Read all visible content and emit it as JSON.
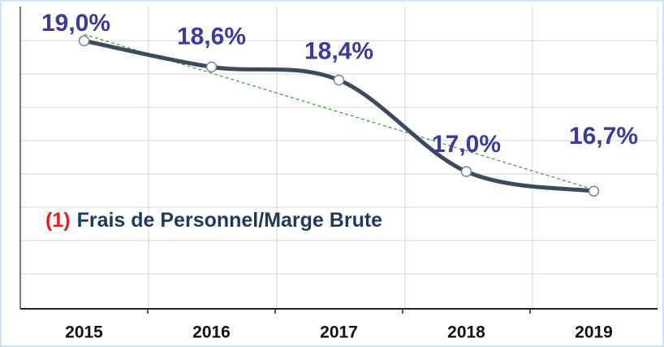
{
  "chart_data": {
    "type": "line",
    "categories": [
      "2015",
      "2016",
      "2017",
      "2018",
      "2019"
    ],
    "values": [
      19.0,
      18.6,
      18.4,
      17.0,
      16.7
    ],
    "value_labels": [
      "19,0%",
      "18,6%",
      "18,4%",
      "17,0%",
      "16,7%"
    ],
    "color": "#3d4a5e",
    "ylim": [
      14.9,
      19.5
    ],
    "annotation": {
      "number": "(1)",
      "text": "Frais de Personnel/Marge Brute"
    },
    "trendline": true
  }
}
